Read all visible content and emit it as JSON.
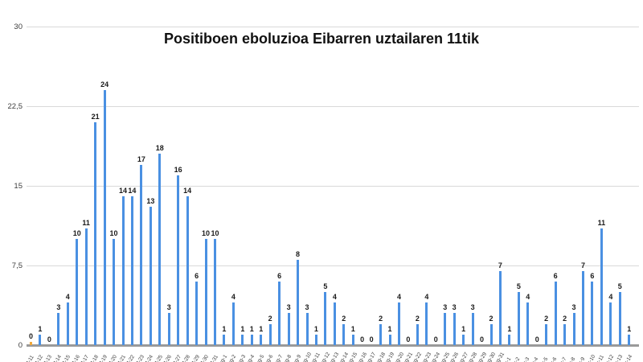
{
  "chart_data": {
    "type": "bar",
    "title": "Positiboen eboluzioa Eibarren uztailaren 11tik",
    "xlabel": "",
    "ylabel": "",
    "ylim": [
      0,
      30
    ],
    "grid": true,
    "legend_position": "none",
    "ytick_labels": [
      "30",
      "22,5",
      "15",
      "7,5",
      "0"
    ],
    "ytick_values": [
      30,
      22.5,
      15,
      7.5,
      0
    ],
    "categories": [
      "J-11",
      "J-12",
      "J-13",
      "J-14",
      "J-15",
      "J-16",
      "J-17",
      "J-18",
      "J-19",
      "J-20",
      "J-21",
      "J-22",
      "J-23",
      "J-24",
      "J-25",
      "J-26",
      "J-27",
      "J-28",
      "J-29",
      "J-30",
      "J-31",
      "ag-1",
      "ag-2",
      "ag-3",
      "ag-4",
      "ag-5",
      "ag-6",
      "ag-7",
      "ag-8",
      "ag-9",
      "ag-10",
      "ag-11",
      "ag-12",
      "ag-13",
      "ag-14",
      "ag-15",
      "ag-16",
      "ag-17",
      "ag-18",
      "ag-19",
      "ag-20",
      "ag-21",
      "ag-22",
      "ag-23",
      "ag-24",
      "ag-25",
      "ag-26",
      "ag-27",
      "ag-28",
      "ag-29",
      "ag-30",
      "ag-31",
      "ir-1",
      "ir-2",
      "ir-3",
      "ir-4",
      "ir-5",
      "ir-6",
      "ir-7",
      "ir-8",
      "ir-9",
      "ir-10",
      "ir-11",
      "ir-12",
      "ir-13",
      "ir-14"
    ],
    "values": [
      0,
      1,
      0,
      3,
      4,
      10,
      11,
      21,
      24,
      10,
      14,
      14,
      17,
      13,
      18,
      3,
      16,
      14,
      6,
      10,
      10,
      1,
      4,
      1,
      1,
      1,
      2,
      6,
      3,
      8,
      3,
      1,
      5,
      4,
      2,
      1,
      0,
      0,
      2,
      1,
      4,
      0,
      2,
      4,
      0,
      3,
      3,
      1,
      3,
      0,
      2,
      7,
      1,
      5,
      4,
      0,
      2,
      6,
      2,
      3,
      7,
      6,
      11,
      4,
      5,
      1
    ],
    "highlight_index": 0,
    "colors": {
      "bar": "#4a90e2",
      "highlight_bar": "#f2a93b",
      "gridline": "#d9d9d9",
      "axis_line": "#9a9a9a",
      "value_label": "#1a1a1a",
      "tick_label": "#3c3c3c",
      "title": "#111111"
    }
  }
}
